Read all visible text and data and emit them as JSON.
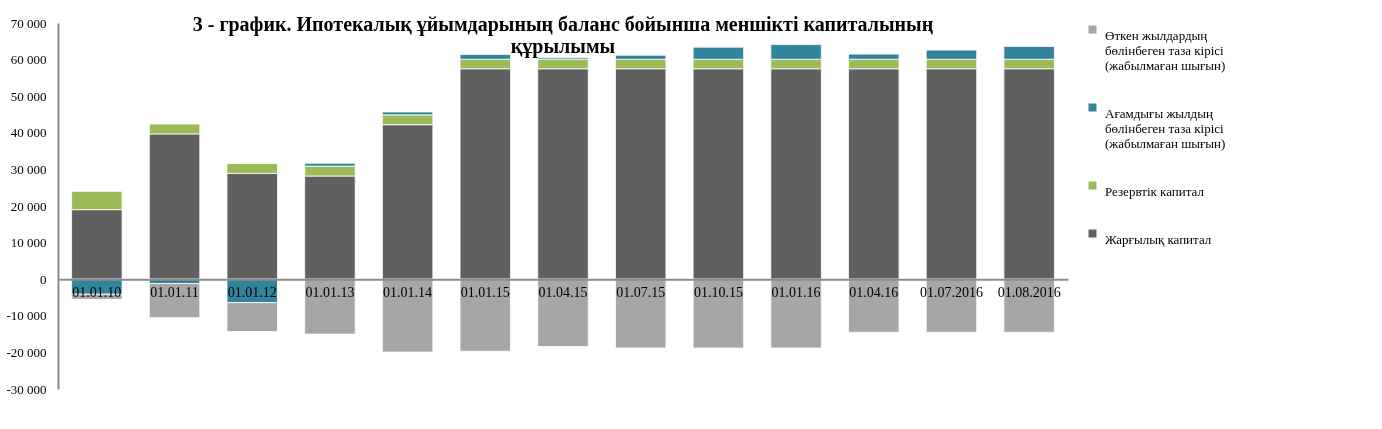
{
  "chart_data": {
    "type": "bar",
    "stacked": true,
    "title": "3 - график. Ипотекалық ұйымдарының баланс бойынша меншікті капиталының құрылымы",
    "categories": [
      "01.01.10",
      "01.01.11",
      "01.01.12",
      "01.01.13",
      "01.01.14",
      "01.01.15",
      "01.04.15",
      "01.07.15",
      "01.10.15",
      "01.01.16",
      "01.04.16",
      "01.07.2016",
      "01.08.2016"
    ],
    "series": [
      {
        "name": "Жарғылық капитал",
        "color": "#606060",
        "values": [
          19000,
          39700,
          28900,
          28200,
          42200,
          57500,
          57500,
          57500,
          57500,
          57500,
          57500,
          57500,
          57500
        ]
      },
      {
        "name": "Резервтік капитал",
        "color": "#9bbb59",
        "values": [
          5000,
          2700,
          2700,
          2700,
          2700,
          2600,
          2600,
          2600,
          2600,
          2600,
          2600,
          2600,
          2600
        ]
      },
      {
        "name": "Ағамдығы жылдың бөлінбеген таза кірісі (жабылмаған шығын)",
        "color": "#31849b",
        "values": [
          -4100,
          -1200,
          -6400,
          800,
          800,
          1300,
          400,
          1100,
          3300,
          4000,
          1400,
          2500,
          3500
        ]
      },
      {
        "name": "Өткен жылдардың бөлінбеген таза кірісі (жабылмаған шығын)",
        "color": "#a6a6a6",
        "values": [
          -1400,
          -9300,
          -7900,
          -15000,
          -19900,
          -19700,
          -18400,
          -18800,
          -18800,
          -18800,
          -14500,
          -14500,
          -14500
        ]
      }
    ],
    "ylim": [
      -30000,
      70000
    ],
    "yticks": [
      {
        "value": -30000,
        "label": "-30 000"
      },
      {
        "value": -20000,
        "label": "-20 000"
      },
      {
        "value": -10000,
        "label": "-10 000"
      },
      0,
      {
        "value": 10000,
        "label": "10 000"
      },
      {
        "value": 20000,
        "label": "20 000"
      },
      {
        "value": 30000,
        "label": "30 000"
      },
      {
        "value": 40000,
        "label": "40 000"
      },
      {
        "value": 50000,
        "label": "50 000"
      },
      {
        "value": 60000,
        "label": "60 000"
      },
      {
        "value": 70000,
        "label": "70 000"
      }
    ],
    "grid": false,
    "legend": "right"
  }
}
